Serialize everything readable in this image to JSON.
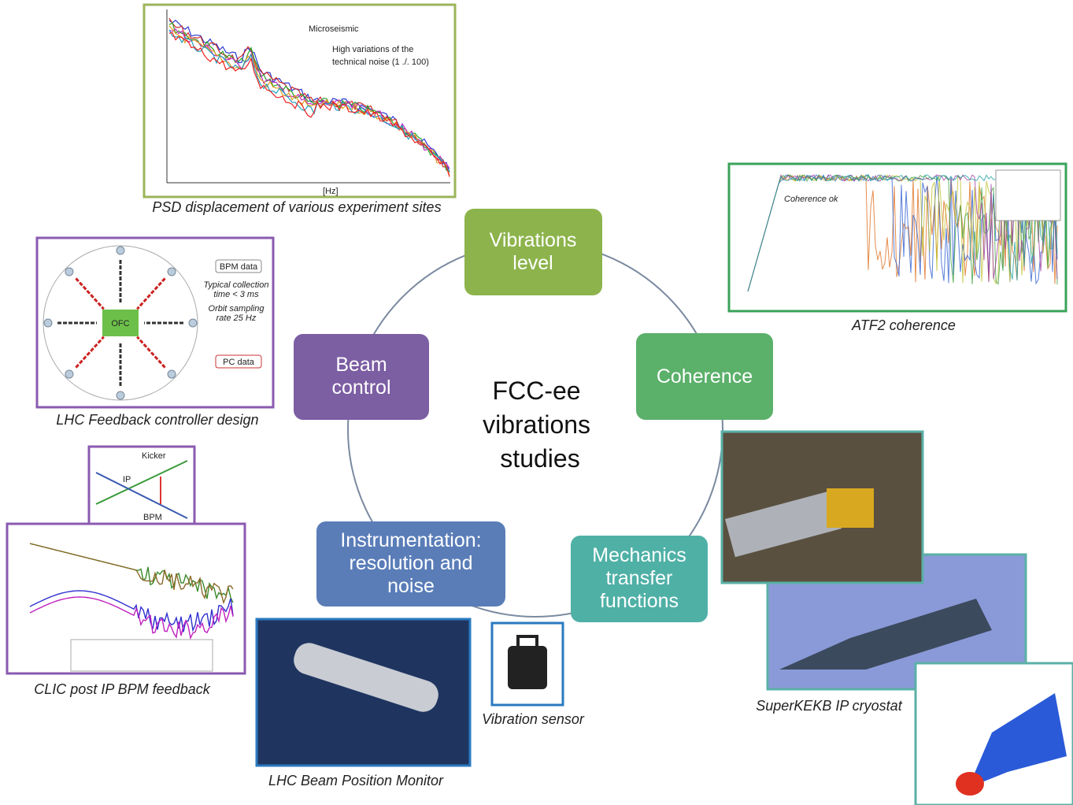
{
  "center_title": [
    "FCC-ee",
    "vibrations",
    "studies"
  ],
  "nodes": [
    {
      "lines": [
        "Vibrations",
        "level"
      ]
    },
    {
      "lines": [
        "Coherence"
      ]
    },
    {
      "lines": [
        "Mechanics",
        "transfer",
        "functions"
      ]
    },
    {
      "lines": [
        "Instrumentation:",
        "resolution and",
        "noise"
      ]
    },
    {
      "lines": [
        "Beam",
        "control"
      ]
    }
  ],
  "panels": [
    {
      "caption": "PSD displacement of various experiment sites",
      "labels": [
        "Microseismic",
        "High variations of the",
        "technical noise (1 ./. 100)",
        "[Hz]"
      ]
    },
    {
      "caption": "ATF2 coherence",
      "labels": [
        "Coherence ok"
      ]
    },
    {
      "caption": "LHC Feedback controller design",
      "labels": [
        "OFC",
        "BPM data",
        "PC data",
        "Typical collection",
        "time < 3 ms",
        "Orbit sampling",
        "rate 25 Hz"
      ]
    },
    {
      "caption": "CLIC post IP BPM feedback",
      "labels": [
        "Kicker",
        "IP",
        "BPM"
      ]
    },
    {
      "caption": "LHC Beam Position Monitor"
    },
    {
      "caption": "Vibration sensor"
    },
    {
      "caption": "SuperKEKB IP cryostat"
    }
  ]
}
